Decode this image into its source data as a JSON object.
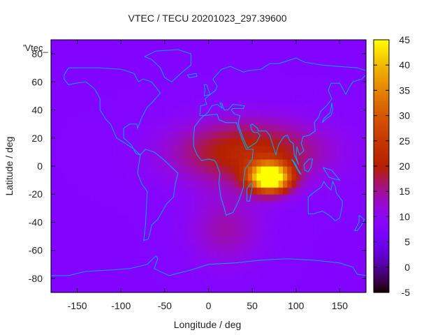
{
  "chart_data": {
    "type": "heatmap",
    "title": "VTEC / TECU 20201023_297.39600",
    "xlabel": "Longitude / deg",
    "ylabel": "Latitude / deg",
    "key_label": "'Vtec_",
    "xlim": [
      -180,
      180
    ],
    "ylim": [
      -90,
      90
    ],
    "zlim": [
      -5,
      45
    ],
    "x_ticks": [
      -150,
      -100,
      -50,
      0,
      50,
      100,
      150
    ],
    "y_ticks": [
      -80,
      -60,
      -40,
      -20,
      0,
      20,
      40,
      60,
      80
    ],
    "colorbar_ticks": [
      -5,
      0,
      5,
      10,
      15,
      20,
      25,
      30,
      35,
      40,
      45
    ],
    "colormap": "black-purple-red-orange-yellow",
    "grid_resolution_deg": [
      5,
      5
    ],
    "features": [
      {
        "lon": 70,
        "lat": -8,
        "peak": 44,
        "sx": 16,
        "sy": 7
      },
      {
        "lon": 45,
        "lat": 10,
        "peak": 14,
        "sx": 60,
        "sy": 16
      },
      {
        "lon": 20,
        "lat": -45,
        "peak": 6,
        "sx": 30,
        "sy": 18
      }
    ],
    "background": 8,
    "coastline_color": "#00aaff"
  }
}
